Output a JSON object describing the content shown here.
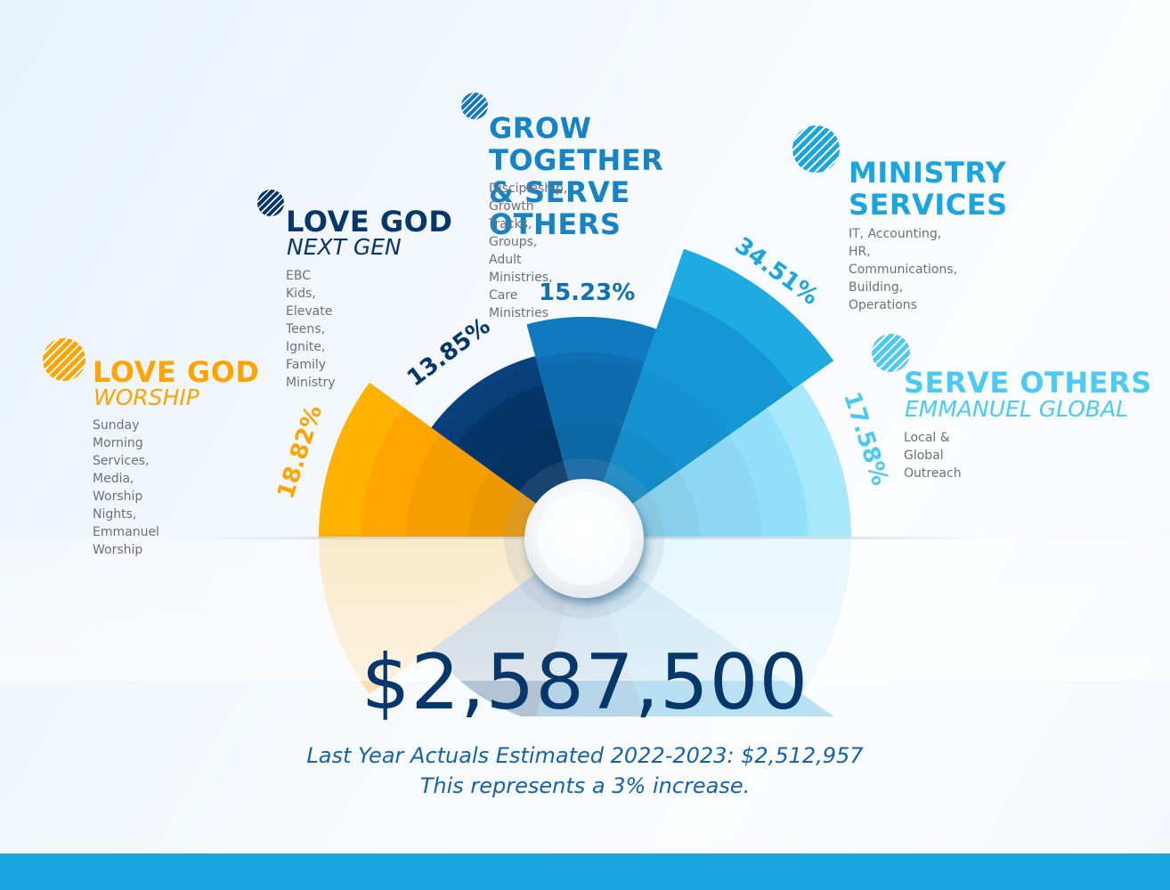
{
  "chart_data": {
    "type": "pie",
    "subtype": "rose-half-donut",
    "title": "",
    "total": "$2,587,500",
    "categories": [
      "Love God - Worship",
      "Love God - Next Gen",
      "Grow Together & Serve Others",
      "Ministry Services",
      "Serve Others - Emmanuel Global"
    ],
    "values": [
      18.82,
      13.85,
      15.23,
      34.51,
      17.58
    ],
    "labels": [
      "18.82%",
      "13.85%",
      "15.23%",
      "34.51%",
      "17.58%"
    ],
    "colors": [
      "#ffa400",
      "#06376a",
      "#0f78bd",
      "#19a5dd",
      "#8fdffa"
    ]
  },
  "segments": [
    {
      "key": "worship",
      "title": "LOVE GOD",
      "subtitle": "WORSHIP",
      "description": "Sunday Morning Services,\nMedia, Worship Nights,\nEmmanuel Worship",
      "percent_label": "18.82%",
      "color": "#ffa400",
      "color_light": "#ffb400",
      "start_deg": 180,
      "end_deg": 144,
      "radius": 298
    },
    {
      "key": "nextgen",
      "title": "LOVE GOD",
      "subtitle": "NEXT GEN",
      "description": "EBC Kids, Elevate Teens,\nIgnite, Family Ministry",
      "percent_label": "13.85%",
      "color": "#06376a",
      "color_light": "#0b4380",
      "start_deg": 144,
      "end_deg": 105,
      "radius": 212
    },
    {
      "key": "grow",
      "title": "GROW TOGETHER\n& SERVE OTHERS",
      "subtitle": "",
      "description": "Discipleship, Growth Tracks, Groups,\nAdult Ministries, Care Ministries",
      "percent_label": "15.23%",
      "color": "#0f6fb2",
      "color_light": "#117cc0",
      "start_deg": 105,
      "end_deg": 71,
      "radius": 249
    },
    {
      "key": "ministry",
      "title": "MINISTRY\nSERVICES",
      "subtitle": "",
      "description": "IT, Accounting,\nHR, Communications,\nBuilding, Operations",
      "percent_label": "34.51%",
      "color": "#1597d6",
      "color_light": "#1eaee3",
      "start_deg": 71,
      "end_deg": 35.5,
      "radius": 344
    },
    {
      "key": "global",
      "title": "SERVE OTHERS",
      "subtitle": "EMMANUEL GLOBAL",
      "description": "Local & Global Outreach",
      "percent_label": "17.58%",
      "color": "#93e0fb",
      "color_light": "#ade9fc",
      "start_deg": 35.5,
      "end_deg": 0,
      "radius": 300
    }
  ],
  "summary": {
    "total": "$2,587,500",
    "last_year_line": "Last Year Actuals Estimated 2022-2023: $2,512,957",
    "increase_line": "This represents a 3% increase."
  },
  "theme": {
    "footer_color": "#19a5de",
    "total_color": "#06376a",
    "note_color": "#1663a6",
    "description_color": "#707070"
  }
}
